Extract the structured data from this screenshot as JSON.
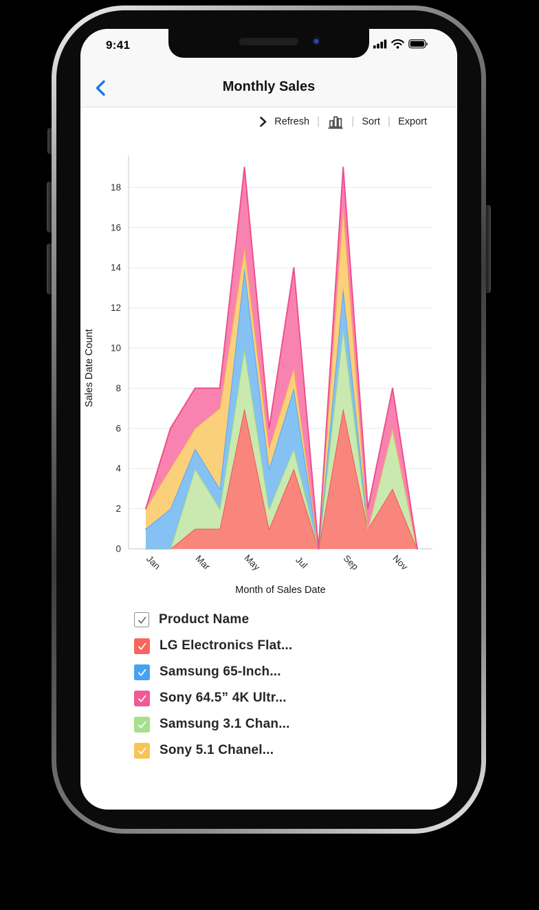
{
  "status_bar": {
    "time": "9:41",
    "icons": [
      "cellular-signal-icon",
      "wifi-icon",
      "battery-icon"
    ]
  },
  "header": {
    "title": "Monthly Sales",
    "back_icon": "chevron-left",
    "accent_color": "#1577f2"
  },
  "toolbar": {
    "expand_icon": "chevron-right",
    "refresh_label": "Refresh",
    "chart_type_icon": "bar-chart",
    "sort_label": "Sort",
    "export_label": "Export",
    "separator": "|"
  },
  "chart_data": {
    "type": "area",
    "stacked": true,
    "title": "",
    "xlabel": "Month of Sales Date",
    "ylabel": "Sales Date Count",
    "x": [
      "Jan",
      "Feb",
      "Mar",
      "Apr",
      "May",
      "Jun",
      "Jul",
      "Aug",
      "Sep",
      "Oct",
      "Nov",
      "Dec"
    ],
    "x_tick_labels": [
      "Jan",
      "Mar",
      "May",
      "Jul",
      "Sep",
      "Nov"
    ],
    "yticks": [
      0,
      2,
      4,
      6,
      8,
      10,
      12,
      14,
      16,
      18
    ],
    "ylim": [
      0,
      19.6
    ],
    "grid": true,
    "series": [
      {
        "name": "LG Electronics Flat...",
        "fill": "#f9867d",
        "stroke": "#f2544d",
        "values": [
          0,
          0,
          1,
          1,
          7,
          1,
          4,
          0,
          7,
          1,
          3,
          0
        ]
      },
      {
        "name": "Samsung 3.1 Chan...",
        "fill": "#c9e9b0",
        "stroke": "#9edc7c",
        "values": [
          0,
          0,
          3,
          1,
          3,
          1,
          1,
          0,
          4,
          0,
          3,
          0
        ]
      },
      {
        "name": "Samsung 65-Inch...",
        "fill": "#86c1f3",
        "stroke": "#54a7ef",
        "values": [
          1,
          2,
          1,
          1,
          4,
          2,
          3,
          0,
          2,
          0,
          0,
          0
        ]
      },
      {
        "name": "Sony 5.1 Chanel...",
        "fill": "#fbd07b",
        "stroke": "#f6bc4b",
        "values": [
          1,
          2,
          1,
          4,
          1,
          1,
          1,
          0,
          4,
          0,
          0,
          0
        ]
      },
      {
        "name": "Sony 64.5” 4K Ultr...",
        "fill": "#f983b0",
        "stroke": "#ee4f8e",
        "values": [
          0,
          2,
          2,
          1,
          4,
          1,
          5,
          0,
          2,
          1,
          2,
          0
        ]
      }
    ],
    "totals": [
      2,
      6,
      8,
      8,
      19,
      6,
      14,
      0,
      19,
      2,
      8,
      0
    ],
    "legend_position": "bottom"
  },
  "legend": {
    "items": [
      {
        "label": "Product Name",
        "color": "#ffffff",
        "check": "#6b6b6b",
        "plain": true
      },
      {
        "label": "LG Electronics Flat...",
        "color": "#f8655f",
        "check": "#ffffff",
        "plain": false
      },
      {
        "label": "Samsung 65-Inch...",
        "color": "#47a2f0",
        "check": "#ffffff",
        "plain": false
      },
      {
        "label": "Sony 64.5” 4K Ultr...",
        "color": "#f05a95",
        "check": "#ffffff",
        "plain": false
      },
      {
        "label": "Samsung 3.1 Chan...",
        "color": "#a8de8d",
        "check": "#ffffff",
        "plain": false
      },
      {
        "label": "Sony 5.1 Chanel...",
        "color": "#f8c45a",
        "check": "#ffffff",
        "plain": false
      }
    ]
  }
}
